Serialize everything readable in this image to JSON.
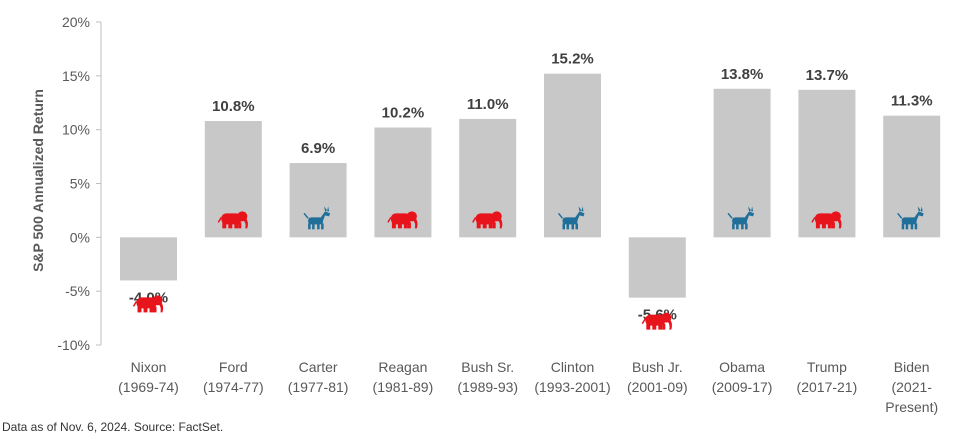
{
  "chart_data": {
    "type": "bar",
    "ylabel": "S&P 500 Annualized Return",
    "ylim": [
      -10,
      20
    ],
    "yticks": [
      -10,
      -5,
      0,
      5,
      10,
      15,
      20
    ],
    "ytick_labels": [
      "-10%",
      "-5%",
      "0%",
      "5%",
      "10%",
      "15%",
      "20%"
    ],
    "categories": [
      [
        "Nixon",
        "(1969-74)"
      ],
      [
        "Ford",
        "(1974-77)"
      ],
      [
        "Carter",
        "(1977-81)"
      ],
      [
        "Reagan",
        "(1981-89)"
      ],
      [
        "Bush Sr.",
        "(1989-93)"
      ],
      [
        "Clinton",
        "(1993-2001)"
      ],
      [
        "Bush Jr.",
        "(2001-09)"
      ],
      [
        "Obama",
        "(2009-17)"
      ],
      [
        "Trump",
        "(2017-21)"
      ],
      [
        "Biden",
        "(2021-",
        "Present)"
      ]
    ],
    "values": [
      -4.0,
      10.8,
      6.9,
      10.2,
      11.0,
      15.2,
      -5.6,
      13.8,
      13.7,
      11.3
    ],
    "value_labels": [
      "-4.0%",
      "10.8%",
      "6.9%",
      "10.2%",
      "11.0%",
      "15.2%",
      "-5.6%",
      "13.8%",
      "13.7%",
      "11.3%"
    ],
    "party_icons": [
      "elephant-icon",
      "elephant-icon",
      "donkey-icon",
      "elephant-icon",
      "elephant-icon",
      "donkey-icon",
      "elephant-icon",
      "donkey-icon",
      "elephant-icon",
      "donkey-icon"
    ],
    "colors": {
      "bar": "#c8c8c8",
      "republican": "#e8141c",
      "democrat": "#1f6f9a",
      "axis": "#bfbfbf"
    }
  },
  "footnote": "Data as of Nov. 6, 2024. Source: FactSet."
}
